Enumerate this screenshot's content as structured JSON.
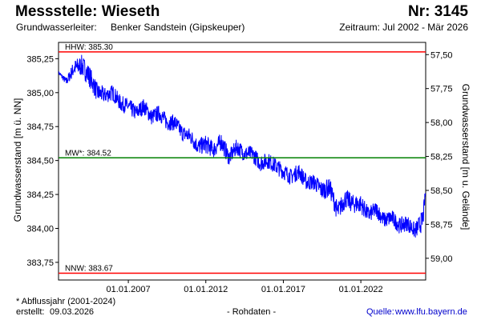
{
  "header": {
    "title": "Messstelle: Wieseth",
    "nr": "Nr: 3145",
    "aquifer_label": "Grundwasserleiter:",
    "aquifer_value": "Benker Sandstein (Gipskeuper)",
    "period": "Zeitraum: Jul 2002 - Mär 2026"
  },
  "footer": {
    "footnote": "* Abflussjahr (2001-2024)",
    "created_label": "erstellt:",
    "created_date": "09.03.2026",
    "rawdata": "- Rohdaten -",
    "source_label": "Quelle:",
    "source_url": "www.lfu.bayern.de"
  },
  "colors": {
    "series": "#0000ff",
    "extreme_lines": "#ff0000",
    "mean_line": "#008000",
    "link": "#0000cc"
  },
  "chart_data": {
    "type": "line",
    "ylabel_left": "Grundwasserstand [m ü. NN]",
    "ylabel_right": "Grundwasserstand [m u. Gelände]",
    "xlim": [
      "2002-07-01",
      "2026-03-09"
    ],
    "ylim_left": [
      383.62,
      385.37
    ],
    "ylim_right": [
      59.16,
      57.41
    ],
    "left_ticks": [
      "383,75",
      "384,00",
      "384,25",
      "384,50",
      "384,75",
      "385,00",
      "385,25"
    ],
    "left_tick_values": [
      383.75,
      384.0,
      384.25,
      384.5,
      384.75,
      385.0,
      385.25
    ],
    "right_ticks": [
      "59,00",
      "58,75",
      "58,50",
      "58,25",
      "58,00",
      "57,75",
      "57,50"
    ],
    "right_tick_values": [
      59.0,
      58.75,
      58.5,
      58.25,
      58.0,
      57.75,
      57.5
    ],
    "x_ticks": [
      "01.01.2007",
      "01.01.2012",
      "01.01.2017",
      "01.01.2022"
    ],
    "x_tick_values": [
      "2007-01-01",
      "2012-01-01",
      "2017-01-01",
      "2022-01-01"
    ],
    "reference_lines": [
      {
        "label": "HHW: 385.30",
        "value": 385.3,
        "kind": "extreme"
      },
      {
        "label": "MW*: 384.52",
        "value": 384.52,
        "kind": "mean"
      },
      {
        "label": "NNW: 383.67",
        "value": 383.67,
        "kind": "extreme"
      }
    ],
    "series": [
      {
        "x": [
          "2002-07-01",
          "2003-01-01",
          "2003-07-01",
          "2004-01-01",
          "2004-07-01",
          "2005-01-01",
          "2005-07-01",
          "2006-01-01",
          "2006-07-01",
          "2007-01-01",
          "2007-07-01",
          "2008-01-01",
          "2008-07-01",
          "2009-01-01",
          "2009-07-01",
          "2010-01-01",
          "2010-07-01",
          "2011-01-01",
          "2011-07-01",
          "2012-01-01",
          "2012-07-01",
          "2013-01-01",
          "2013-07-01",
          "2014-01-01",
          "2014-07-01",
          "2015-01-01",
          "2015-07-01",
          "2016-01-01",
          "2016-07-01",
          "2017-01-01",
          "2017-07-01",
          "2018-01-01",
          "2018-07-01",
          "2019-01-01",
          "2019-07-01",
          "2020-01-01",
          "2020-07-01",
          "2021-01-01",
          "2021-07-01",
          "2022-01-01",
          "2022-07-01",
          "2023-01-01",
          "2023-07-01",
          "2024-01-01",
          "2024-07-01",
          "2025-01-01",
          "2025-07-01",
          "2026-01-01",
          "2026-03-01"
        ],
        "values": [
          385.15,
          385.08,
          385.18,
          385.2,
          385.12,
          385.0,
          384.98,
          385.0,
          384.92,
          384.9,
          384.85,
          384.9,
          384.82,
          384.85,
          384.78,
          384.78,
          384.7,
          384.68,
          384.6,
          384.62,
          384.58,
          384.64,
          384.52,
          384.6,
          384.55,
          384.55,
          384.48,
          384.5,
          384.46,
          384.42,
          384.38,
          384.42,
          384.34,
          384.34,
          384.28,
          384.3,
          384.12,
          384.22,
          384.18,
          384.18,
          384.1,
          384.14,
          384.06,
          384.08,
          384.02,
          384.04,
          383.98,
          384.06,
          384.26
        ],
        "amplitude": [
          0.01,
          0.03,
          0.06,
          0.08,
          0.08,
          0.07,
          0.06,
          0.06,
          0.06,
          0.06,
          0.06,
          0.06,
          0.06,
          0.06,
          0.06,
          0.06,
          0.06,
          0.06,
          0.06,
          0.07,
          0.06,
          0.07,
          0.06,
          0.06,
          0.06,
          0.06,
          0.06,
          0.06,
          0.06,
          0.06,
          0.06,
          0.06,
          0.06,
          0.06,
          0.07,
          0.07,
          0.07,
          0.07,
          0.07,
          0.07,
          0.06,
          0.06,
          0.06,
          0.06,
          0.06,
          0.06,
          0.06,
          0.08,
          0.03
        ]
      }
    ]
  }
}
